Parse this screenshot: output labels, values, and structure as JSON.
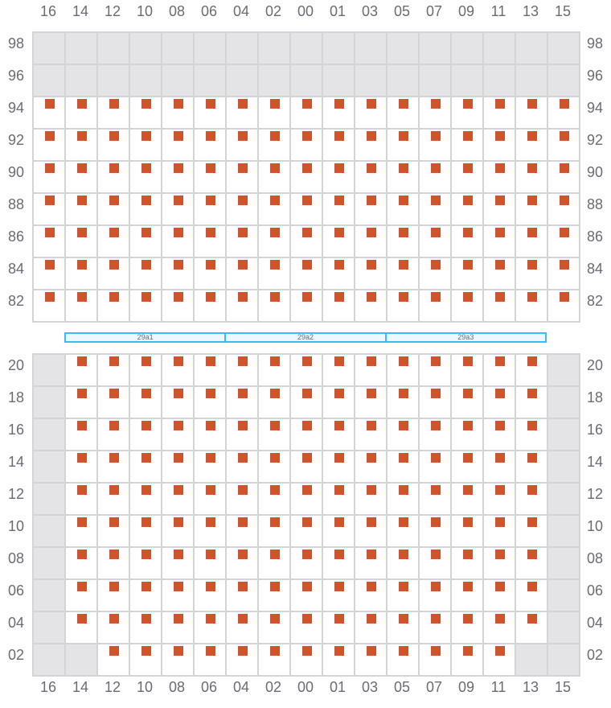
{
  "colors": {
    "seat": "#cf532b",
    "unavailable": "#e4e4e7",
    "grid_line": "#d4d4d8",
    "band_border": "#38bdf8",
    "band_fill": "#eef6ff"
  },
  "columns": [
    "16",
    "14",
    "12",
    "10",
    "08",
    "06",
    "04",
    "02",
    "00",
    "01",
    "03",
    "05",
    "07",
    "09",
    "11",
    "13",
    "15"
  ],
  "top_section": {
    "rows": [
      {
        "label": "98",
        "cells": "xxxxxxxxxxxxxxxxx"
      },
      {
        "label": "96",
        "cells": "xxxxxxxxxxxxxxxxx"
      },
      {
        "label": "94",
        "cells": "sssssssssssssssss"
      },
      {
        "label": "92",
        "cells": "sssssssssssssssss"
      },
      {
        "label": "90",
        "cells": "sssssssssssssssss"
      },
      {
        "label": "88",
        "cells": "sssssssssssssssss"
      },
      {
        "label": "86",
        "cells": "sssssssssssssssss"
      },
      {
        "label": "84",
        "cells": "sssssssssssssssss"
      },
      {
        "label": "82",
        "cells": "sssssssssssssssss"
      }
    ]
  },
  "band": {
    "segments": [
      "29a1",
      "29a2",
      "29a3"
    ]
  },
  "bottom_section": {
    "rows": [
      {
        "label": "20",
        "cells": "xsssssssssssssssx"
      },
      {
        "label": "18",
        "cells": "xsssssssssssssssx"
      },
      {
        "label": "16",
        "cells": "xsssssssssssssssx"
      },
      {
        "label": "14",
        "cells": "xsssssssssssssssx"
      },
      {
        "label": "12",
        "cells": "xsssssssssssssssx"
      },
      {
        "label": "10",
        "cells": "xsssssssssssssssx"
      },
      {
        "label": "08",
        "cells": "xsssssssssssssssx"
      },
      {
        "label": "06",
        "cells": "xsssssssssssssssx"
      },
      {
        "label": "04",
        "cells": "xsssssssssssssssx"
      },
      {
        "label": "02",
        "cells": "xxsssssssssssssxx"
      }
    ]
  }
}
